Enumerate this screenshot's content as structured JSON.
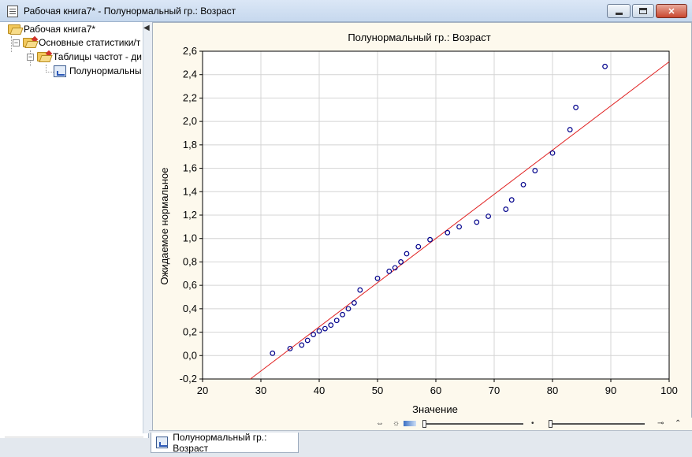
{
  "window": {
    "title": "Рабочая книга7* - Полунормальный гр.: Возраст"
  },
  "tree": {
    "items": [
      {
        "label": "Рабочая книга7*"
      },
      {
        "label": "Основные статистики/т"
      },
      {
        "label": "Таблицы частот - ди"
      },
      {
        "label": "Полунормальны"
      }
    ]
  },
  "tab": {
    "label": "Полунормальный гр.: Возраст"
  },
  "chart_data": {
    "type": "scatter",
    "title": "Полунормальный гр.: Возраст",
    "xlabel": "Значение",
    "ylabel": "Ожидаемое нормальное",
    "xlim": [
      20,
      100
    ],
    "ylim": [
      -0.2,
      2.6
    ],
    "x_ticks": [
      "20",
      "30",
      "40",
      "50",
      "60",
      "70",
      "80",
      "90",
      "100"
    ],
    "y_ticks": [
      "-0,2",
      "0,0",
      "0,2",
      "0,4",
      "0,6",
      "0,8",
      "1,0",
      "1,2",
      "1,4",
      "1,6",
      "1,8",
      "2,0",
      "2,2",
      "2,4",
      "2,6"
    ],
    "grid": true,
    "point_color": "#00008b",
    "line_color": "#e02020",
    "points": [
      {
        "x": 32,
        "y": 0.02
      },
      {
        "x": 35,
        "y": 0.06
      },
      {
        "x": 37,
        "y": 0.09
      },
      {
        "x": 38,
        "y": 0.13
      },
      {
        "x": 39,
        "y": 0.18
      },
      {
        "x": 40,
        "y": 0.21
      },
      {
        "x": 41,
        "y": 0.23
      },
      {
        "x": 42,
        "y": 0.26
      },
      {
        "x": 43,
        "y": 0.3
      },
      {
        "x": 44,
        "y": 0.35
      },
      {
        "x": 45,
        "y": 0.4
      },
      {
        "x": 46,
        "y": 0.45
      },
      {
        "x": 47,
        "y": 0.56
      },
      {
        "x": 50,
        "y": 0.66
      },
      {
        "x": 52,
        "y": 0.72
      },
      {
        "x": 53,
        "y": 0.75
      },
      {
        "x": 54,
        "y": 0.8
      },
      {
        "x": 55,
        "y": 0.87
      },
      {
        "x": 57,
        "y": 0.93
      },
      {
        "x": 59,
        "y": 0.99
      },
      {
        "x": 62,
        "y": 1.05
      },
      {
        "x": 64,
        "y": 1.1
      },
      {
        "x": 67,
        "y": 1.14
      },
      {
        "x": 69,
        "y": 1.19
      },
      {
        "x": 72,
        "y": 1.25
      },
      {
        "x": 73,
        "y": 1.33
      },
      {
        "x": 75,
        "y": 1.46
      },
      {
        "x": 77,
        "y": 1.58
      },
      {
        "x": 80,
        "y": 1.73
      },
      {
        "x": 83,
        "y": 1.93
      },
      {
        "x": 84,
        "y": 2.12
      },
      {
        "x": 89,
        "y": 2.47
      }
    ],
    "fit_line": {
      "x1": 28.2,
      "y1": -0.2,
      "x2": 100,
      "y2": 2.51
    }
  }
}
